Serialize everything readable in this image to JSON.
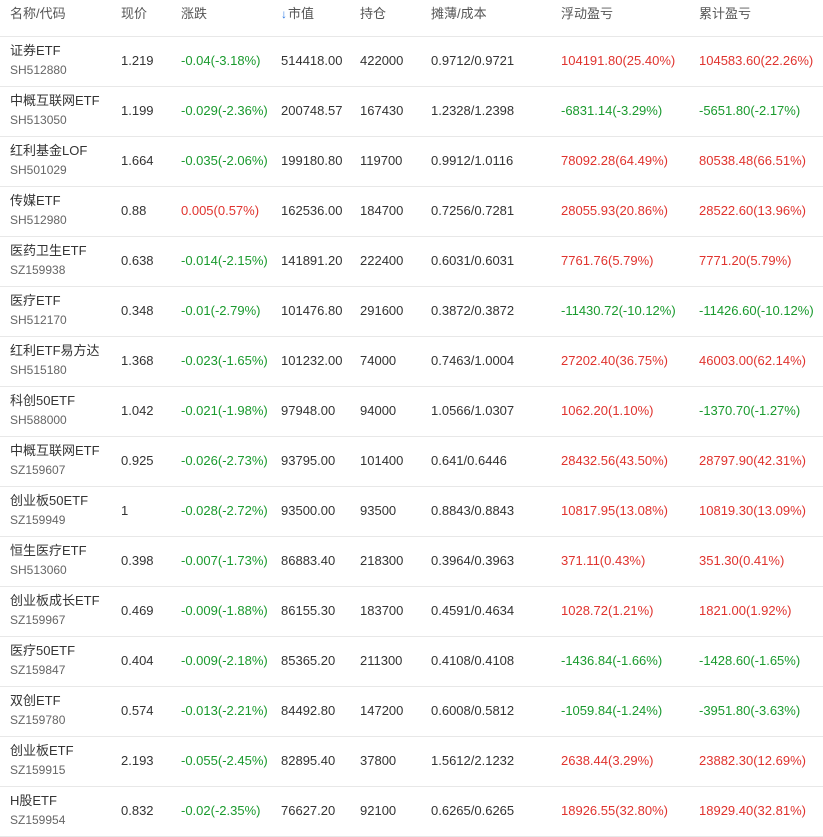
{
  "colors": {
    "up": "#e0332e",
    "down": "#1a9a2e",
    "sort_icon": "#2b78e4"
  },
  "headers": {
    "name_code": "名称/代码",
    "price": "现价",
    "change": "涨跌",
    "sort_icon": "↓",
    "sort_icon_name": "arrow-down-icon",
    "market_value": "市值",
    "position": "持仓",
    "cost": "摊薄/成本",
    "floating_pl": "浮动盈亏",
    "cumulative_pl": "累计盈亏"
  },
  "rows": [
    {
      "name": "证券ETF",
      "code": "SH512880",
      "price": "1.219",
      "change": "-0.04(-3.18%)",
      "change_dir": "down",
      "market_value": "514418.00",
      "position": "422000",
      "cost": "0.9712/0.9721",
      "floating_pl": "104191.80(25.40%)",
      "floating_dir": "up",
      "cumulative_pl": "104583.60(22.26%)",
      "cumulative_dir": "up"
    },
    {
      "name": "中概互联网ETF",
      "code": "SH513050",
      "price": "1.199",
      "change": "-0.029(-2.36%)",
      "change_dir": "down",
      "market_value": "200748.57",
      "position": "167430",
      "cost": "1.2328/1.2398",
      "floating_pl": "-6831.14(-3.29%)",
      "floating_dir": "down",
      "cumulative_pl": "-5651.80(-2.17%)",
      "cumulative_dir": "down"
    },
    {
      "name": "红利基金LOF",
      "code": "SH501029",
      "price": "1.664",
      "change": "-0.035(-2.06%)",
      "change_dir": "down",
      "market_value": "199180.80",
      "position": "119700",
      "cost": "0.9912/1.0116",
      "floating_pl": "78092.28(64.49%)",
      "floating_dir": "up",
      "cumulative_pl": "80538.48(66.51%)",
      "cumulative_dir": "up"
    },
    {
      "name": "传媒ETF",
      "code": "SH512980",
      "price": "0.88",
      "change": "0.005(0.57%)",
      "change_dir": "up",
      "market_value": "162536.00",
      "position": "184700",
      "cost": "0.7256/0.7281",
      "floating_pl": "28055.93(20.86%)",
      "floating_dir": "up",
      "cumulative_pl": "28522.60(13.96%)",
      "cumulative_dir": "up"
    },
    {
      "name": "医药卫生ETF",
      "code": "SZ159938",
      "price": "0.638",
      "change": "-0.014(-2.15%)",
      "change_dir": "down",
      "market_value": "141891.20",
      "position": "222400",
      "cost": "0.6031/0.6031",
      "floating_pl": "7761.76(5.79%)",
      "floating_dir": "up",
      "cumulative_pl": "7771.20(5.79%)",
      "cumulative_dir": "up"
    },
    {
      "name": "医疗ETF",
      "code": "SH512170",
      "price": "0.348",
      "change": "-0.01(-2.79%)",
      "change_dir": "down",
      "market_value": "101476.80",
      "position": "291600",
      "cost": "0.3872/0.3872",
      "floating_pl": "-11430.72(-10.12%)",
      "floating_dir": "down",
      "cumulative_pl": "-11426.60(-10.12%)",
      "cumulative_dir": "down"
    },
    {
      "name": "红利ETF易方达",
      "code": "SH515180",
      "price": "1.368",
      "change": "-0.023(-1.65%)",
      "change_dir": "down",
      "market_value": "101232.00",
      "position": "74000",
      "cost": "0.7463/1.0004",
      "floating_pl": "27202.40(36.75%)",
      "floating_dir": "up",
      "cumulative_pl": "46003.00(62.14%)",
      "cumulative_dir": "up"
    },
    {
      "name": "科创50ETF",
      "code": "SH588000",
      "price": "1.042",
      "change": "-0.021(-1.98%)",
      "change_dir": "down",
      "market_value": "97948.00",
      "position": "94000",
      "cost": "1.0566/1.0307",
      "floating_pl": "1062.20(1.10%)",
      "floating_dir": "up",
      "cumulative_pl": "-1370.70(-1.27%)",
      "cumulative_dir": "down"
    },
    {
      "name": "中概互联网ETF",
      "code": "SZ159607",
      "price": "0.925",
      "change": "-0.026(-2.73%)",
      "change_dir": "down",
      "market_value": "93795.00",
      "position": "101400",
      "cost": "0.641/0.6446",
      "floating_pl": "28432.56(43.50%)",
      "floating_dir": "up",
      "cumulative_pl": "28797.90(42.31%)",
      "cumulative_dir": "up"
    },
    {
      "name": "创业板50ETF",
      "code": "SZ159949",
      "price": "1",
      "change": "-0.028(-2.72%)",
      "change_dir": "down",
      "market_value": "93500.00",
      "position": "93500",
      "cost": "0.8843/0.8843",
      "floating_pl": "10817.95(13.08%)",
      "floating_dir": "up",
      "cumulative_pl": "10819.30(13.09%)",
      "cumulative_dir": "up"
    },
    {
      "name": "恒生医疗ETF",
      "code": "SH513060",
      "price": "0.398",
      "change": "-0.007(-1.73%)",
      "change_dir": "down",
      "market_value": "86883.40",
      "position": "218300",
      "cost": "0.3964/0.3963",
      "floating_pl": "371.11(0.43%)",
      "floating_dir": "up",
      "cumulative_pl": "351.30(0.41%)",
      "cumulative_dir": "up"
    },
    {
      "name": "创业板成长ETF",
      "code": "SZ159967",
      "price": "0.469",
      "change": "-0.009(-1.88%)",
      "change_dir": "down",
      "market_value": "86155.30",
      "position": "183700",
      "cost": "0.4591/0.4634",
      "floating_pl": "1028.72(1.21%)",
      "floating_dir": "up",
      "cumulative_pl": "1821.00(1.92%)",
      "cumulative_dir": "up"
    },
    {
      "name": "医疗50ETF",
      "code": "SZ159847",
      "price": "0.404",
      "change": "-0.009(-2.18%)",
      "change_dir": "down",
      "market_value": "85365.20",
      "position": "211300",
      "cost": "0.4108/0.4108",
      "floating_pl": "-1436.84(-1.66%)",
      "floating_dir": "down",
      "cumulative_pl": "-1428.60(-1.65%)",
      "cumulative_dir": "down"
    },
    {
      "name": "双创ETF",
      "code": "SZ159780",
      "price": "0.574",
      "change": "-0.013(-2.21%)",
      "change_dir": "down",
      "market_value": "84492.80",
      "position": "147200",
      "cost": "0.6008/0.5812",
      "floating_pl": "-1059.84(-1.24%)",
      "floating_dir": "down",
      "cumulative_pl": "-3951.80(-3.63%)",
      "cumulative_dir": "down"
    },
    {
      "name": "创业板ETF",
      "code": "SZ159915",
      "price": "2.193",
      "change": "-0.055(-2.45%)",
      "change_dir": "down",
      "market_value": "82895.40",
      "position": "37800",
      "cost": "1.5612/2.1232",
      "floating_pl": "2638.44(3.29%)",
      "floating_dir": "up",
      "cumulative_pl": "23882.30(12.69%)",
      "cumulative_dir": "up"
    },
    {
      "name": "H股ETF",
      "code": "SZ159954",
      "price": "0.832",
      "change": "-0.02(-2.35%)",
      "change_dir": "down",
      "market_value": "76627.20",
      "position": "92100",
      "cost": "0.6265/0.6265",
      "floating_pl": "18926.55(32.80%)",
      "floating_dir": "up",
      "cumulative_pl": "18929.40(32.81%)",
      "cumulative_dir": "up"
    }
  ]
}
